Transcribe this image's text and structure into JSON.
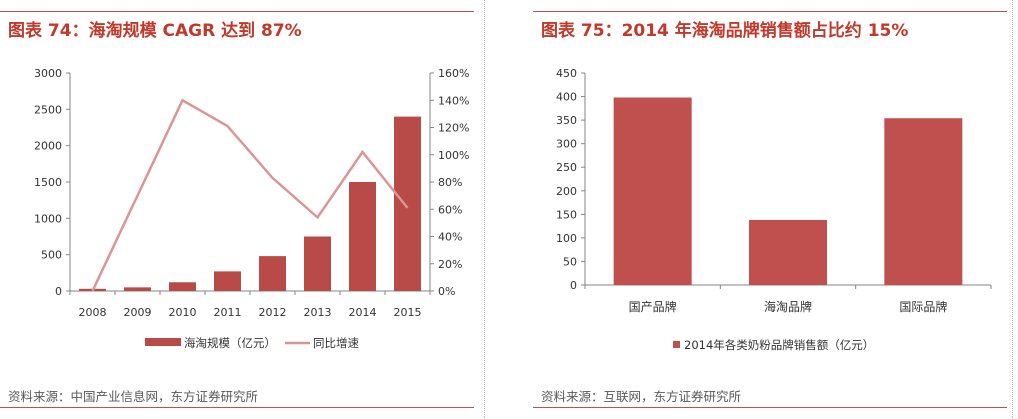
{
  "colors": {
    "title": "#c0392b",
    "bar": "#b84a48",
    "bar2": "#c0504d",
    "line": "#d99694",
    "axis": "#868686",
    "source": "#595959"
  },
  "left": {
    "title": "图表 74：海淘规模 CAGR 达到 87%",
    "source": "资料来源：中国产业信息网，东方证券研究所",
    "chart_data": {
      "type": "bar+line",
      "title": "图表 74：海淘规模 CAGR 达到 87%",
      "categories": [
        "2008",
        "2009",
        "2010",
        "2011",
        "2012",
        "2013",
        "2014",
        "2015"
      ],
      "series": [
        {
          "name": "海淘规模（亿元）",
          "type": "bar",
          "axis": "left",
          "values": [
            30,
            50,
            120,
            270,
            480,
            750,
            1500,
            2400
          ]
        },
        {
          "name": "同比增速",
          "type": "line",
          "axis": "right",
          "values": [
            0,
            70,
            140,
            121,
            83,
            54,
            102,
            61
          ]
        }
      ],
      "y_left": {
        "min": 0,
        "max": 3000,
        "ticks": [
          "0",
          "500",
          "1000",
          "1500",
          "2000",
          "2500",
          "3000"
        ]
      },
      "y_right": {
        "min": 0,
        "max": 160,
        "ticks": [
          "0%",
          "20%",
          "40%",
          "60%",
          "80%",
          "100%",
          "120%",
          "140%",
          "160%"
        ]
      },
      "legend": [
        "海淘规模（亿元）",
        "同比增速"
      ]
    }
  },
  "right": {
    "title": "图表 75：2014 年海淘品牌销售额占比约 15%",
    "source": "资料来源：互联网，东方证券研究所",
    "chart_data": {
      "type": "bar",
      "title": "图表 75：2014 年海淘品牌销售额占比约 15%",
      "categories": [
        "国产品牌",
        "海淘品牌",
        "国际品牌"
      ],
      "series": [
        {
          "name": "2014年各类奶粉品牌销售额（亿元）",
          "values": [
            398,
            138,
            354
          ]
        }
      ],
      "ylim": [
        0,
        450
      ],
      "y_ticks": [
        "0",
        "50",
        "100",
        "150",
        "200",
        "250",
        "300",
        "350",
        "400",
        "450"
      ],
      "legend": [
        "2014年各类奶粉品牌销售额（亿元）"
      ]
    }
  }
}
